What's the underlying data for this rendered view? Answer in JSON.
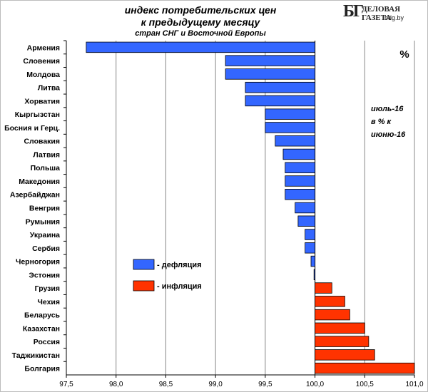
{
  "header": {
    "title_line1": "индекс потребительских цен",
    "title_line2": "к предыдущему месяцу",
    "title_line3": "стран СНГ и Восточной Европы"
  },
  "logo": {
    "mark": "БГ",
    "name": "ДЕЛОВАЯ ГАЗЕТА",
    "url": "bdg.by"
  },
  "chart_data": {
    "type": "bar",
    "orientation": "horizontal",
    "title": "индекс потребительских цен к предыдущему месяцу стран СНГ и Восточной Европы",
    "unit_label": "%",
    "annotation": [
      "июль-16",
      "в % к",
      "июню-16"
    ],
    "baseline": 100.0,
    "xlim": [
      97.5,
      101.0
    ],
    "xticks": [
      "97,5",
      "98,0",
      "98,5",
      "99,0",
      "99,5",
      "100,0",
      "100,5",
      "101,0"
    ],
    "xtick_values": [
      97.5,
      98.0,
      98.5,
      99.0,
      99.5,
      100.0,
      100.5,
      101.0
    ],
    "grid": true,
    "legend_position": "center-left",
    "legend": [
      {
        "name": "- дефляция",
        "color": "#3366ff"
      },
      {
        "name": "- инфляция",
        "color": "#ff3300"
      }
    ],
    "categories": [
      "Армения",
      "Словения",
      "Молдова",
      "Литва",
      "Хорватия",
      "Кыргызстан",
      "Босния и Герц.",
      "Словакия",
      "Латвия",
      "Польша",
      "Македония",
      "Азербайджан",
      "Венгрия",
      "Румыния",
      "Украина",
      "Сербия",
      "Черногория",
      "Эстония",
      "Грузия",
      "Чехия",
      "Беларусь",
      "Казахстан",
      "Россия",
      "Таджикистан",
      "Болгария"
    ],
    "values": [
      97.7,
      99.1,
      99.1,
      99.3,
      99.3,
      99.5,
      99.5,
      99.6,
      99.68,
      99.7,
      99.7,
      99.7,
      99.8,
      99.83,
      99.9,
      99.9,
      99.96,
      99.99,
      100.17,
      100.3,
      100.35,
      100.5,
      100.54,
      100.6,
      101.0
    ],
    "colors": {
      "deflation": "#3366ff",
      "inflation": "#ff3300"
    }
  }
}
